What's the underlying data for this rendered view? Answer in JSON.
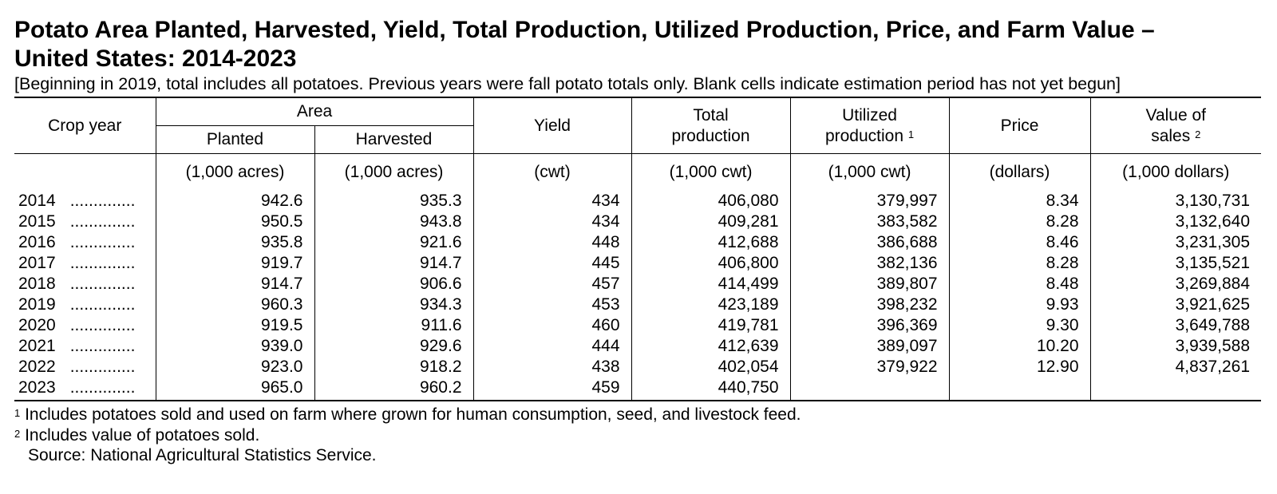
{
  "title_line1": "Potato Area Planted, Harvested, Yield, Total Production, Utilized Production, Price, and Farm Value –",
  "title_line2": "United States: 2014-2023",
  "subtitle": "[Beginning in 2019, total includes all potatoes. Previous years were fall potato totals only. Blank cells indicate estimation period has not yet begun]",
  "headers": {
    "crop_year": "Crop year",
    "area": "Area",
    "planted": "Planted",
    "harvested": "Harvested",
    "yield": "Yield",
    "total_production_1": "Total",
    "total_production_2": "production",
    "utilized_1": "Utilized",
    "utilized_2": "production",
    "utilized_fn": "1",
    "price": "Price",
    "value_1": "Value of",
    "value_2": "sales",
    "value_fn": "2"
  },
  "units": [
    "(1,000 acres)",
    "(1,000 acres)",
    "(cwt)",
    "(1,000 cwt)",
    "(1,000 cwt)",
    "(dollars)",
    "(1,000 dollars)"
  ],
  "dot_leader": "..............",
  "rows": [
    {
      "year": "2014",
      "planted": "942.6",
      "harvested": "935.3",
      "yield": "434",
      "total": "406,080",
      "utilized": "379,997",
      "price": "8.34",
      "value": "3,130,731"
    },
    {
      "year": "2015",
      "planted": "950.5",
      "harvested": "943.8",
      "yield": "434",
      "total": "409,281",
      "utilized": "383,582",
      "price": "8.28",
      "value": "3,132,640"
    },
    {
      "year": "2016",
      "planted": "935.8",
      "harvested": "921.6",
      "yield": "448",
      "total": "412,688",
      "utilized": "386,688",
      "price": "8.46",
      "value": "3,231,305"
    },
    {
      "year": "2017",
      "planted": "919.7",
      "harvested": "914.7",
      "yield": "445",
      "total": "406,800",
      "utilized": "382,136",
      "price": "8.28",
      "value": "3,135,521"
    },
    {
      "year": "2018",
      "planted": "914.7",
      "harvested": "906.6",
      "yield": "457",
      "total": "414,499",
      "utilized": "389,807",
      "price": "8.48",
      "value": "3,269,884"
    },
    {
      "year": "2019",
      "planted": "960.3",
      "harvested": "934.3",
      "yield": "453",
      "total": "423,189",
      "utilized": "398,232",
      "price": "9.93",
      "value": "3,921,625"
    },
    {
      "year": "2020",
      "planted": "919.5",
      "harvested": "911.6",
      "yield": "460",
      "total": "419,781",
      "utilized": "396,369",
      "price": "9.30",
      "value": "3,649,788"
    },
    {
      "year": "2021",
      "planted": "939.0",
      "harvested": "929.6",
      "yield": "444",
      "total": "412,639",
      "utilized": "389,097",
      "price": "10.20",
      "value": "3,939,588"
    },
    {
      "year": "2022",
      "planted": "923.0",
      "harvested": "918.2",
      "yield": "438",
      "total": "402,054",
      "utilized": "379,922",
      "price": "12.90",
      "value": "4,837,261"
    },
    {
      "year": "2023",
      "planted": "965.0",
      "harvested": "960.2",
      "yield": "459",
      "total": "440,750",
      "utilized": "",
      "price": "",
      "value": ""
    }
  ],
  "footnotes": [
    {
      "mark": "1",
      "text": "Includes potatoes sold and used on farm where grown for human consumption, seed, and livestock feed."
    },
    {
      "mark": "2",
      "text": "Includes value of potatoes sold."
    }
  ],
  "source": "Source:  National Agricultural Statistics Service."
}
